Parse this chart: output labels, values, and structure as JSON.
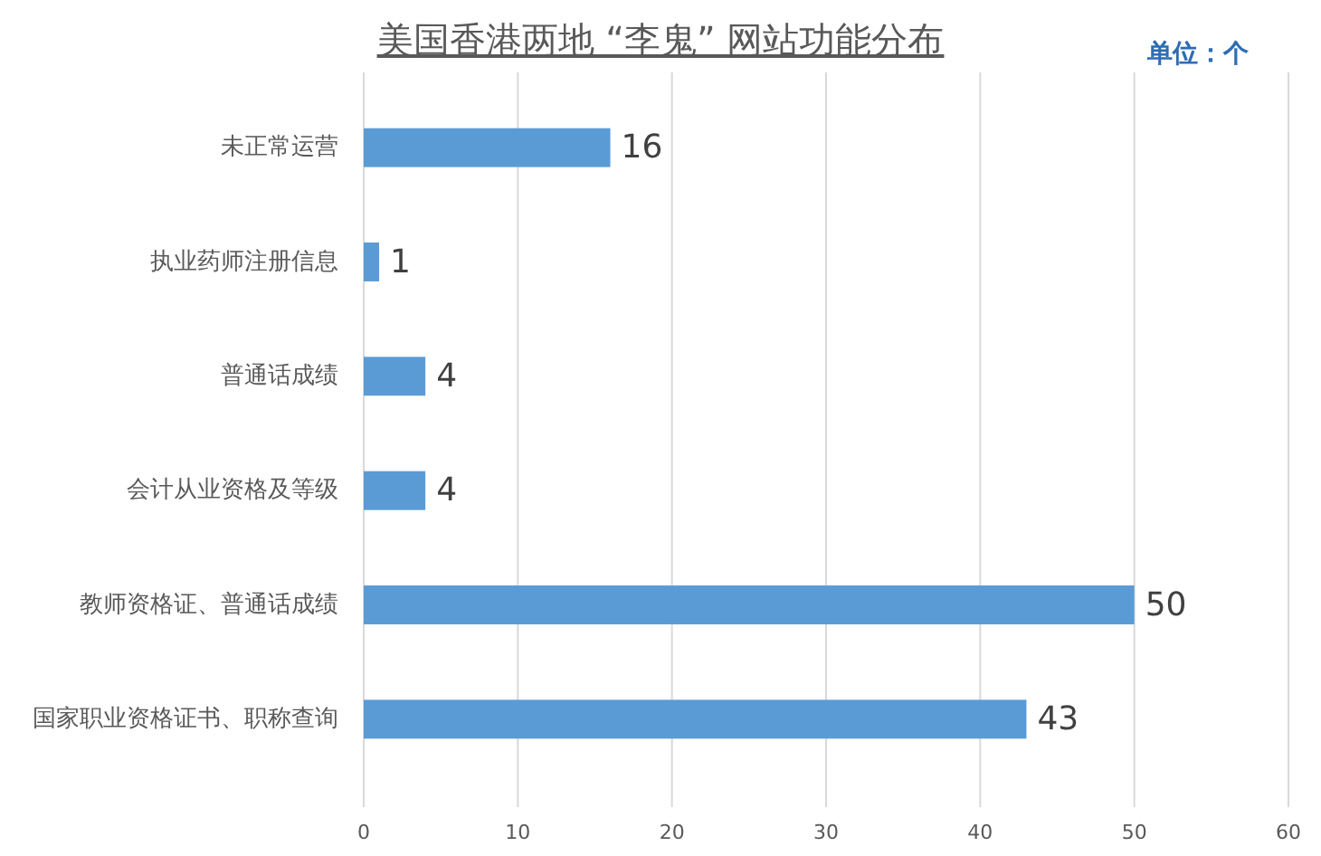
{
  "chart_data": {
    "type": "bar",
    "orientation": "horizontal",
    "title": "美国香港两地 “李鬼” 网站功能分布",
    "annotations": [
      "单位：个"
    ],
    "categories": [
      "未正常运营",
      "执业药师注册信息",
      "普通话成绩",
      "会计从业资格及等级",
      "教师资格证、普通话成绩",
      "国家职业资格证书、职称查询"
    ],
    "values": [
      16,
      1,
      4,
      4,
      50,
      43
    ],
    "color": "#5b9bd5",
    "xlim": [
      0,
      60
    ],
    "xticks": [
      0,
      10,
      20,
      30,
      40,
      50,
      60
    ],
    "grid": "x",
    "data_labels": true
  }
}
